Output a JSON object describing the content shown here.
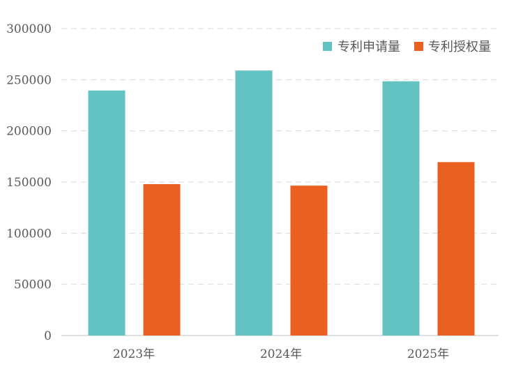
{
  "chart_data": {
    "type": "bar",
    "categories": [
      "2023年",
      "2024年",
      "2025年"
    ],
    "series": [
      {
        "name": "专利申请量",
        "values": [
          239500,
          259000,
          248500
        ],
        "color": "#63C3C2"
      },
      {
        "name": "专利授权量",
        "values": [
          148000,
          146500,
          169500
        ],
        "color": "#EA6020"
      }
    ],
    "ylim": [
      0,
      300000
    ],
    "yticks": [
      0,
      50000,
      100000,
      150000,
      200000,
      250000,
      300000
    ],
    "ytick_labels": [
      "0",
      "50000",
      "100000",
      "150000",
      "200000",
      "250000",
      "300000"
    ],
    "grid": true,
    "grid_style": "dashed",
    "legend_position": "top-right",
    "title": "",
    "xlabel": "",
    "ylabel": ""
  }
}
